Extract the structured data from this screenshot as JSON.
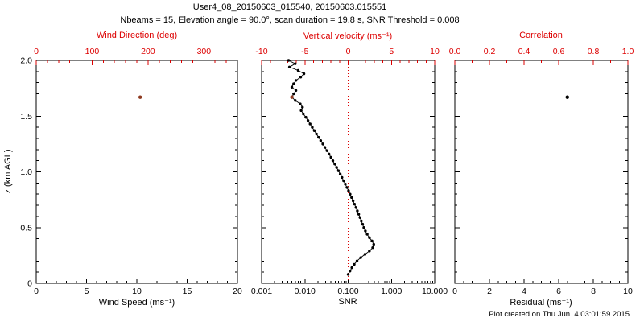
{
  "title": "User4_08_20150603_015540, 20150603.015551",
  "subtitle": "Nbeams = 15, Elevation angle = 90.0°, scan duration = 19.8 s, SNR Threshold = 0.008",
  "footer": "Plot created on Thu Jun  4 03:01:59 2015",
  "y_axis_label": "z (km AGL)",
  "colors": {
    "axis_red": "#dd0000",
    "black": "#000000",
    "point_brown": "#8e3a20",
    "background": "#ffffff"
  },
  "chart_data": [
    {
      "type": "scatter",
      "name": "wind",
      "title_top": "Wind Direction (deg)",
      "title_bottom": "Wind Speed (ms⁻¹)",
      "bottom_axis": {
        "scale": "linear",
        "range": [
          0,
          20
        ],
        "tick_values": [
          0,
          5,
          10,
          15,
          20
        ],
        "tick_labels": [
          "0",
          "5",
          "10",
          "15",
          "20"
        ],
        "minor_per_major": 4
      },
      "top_axis": {
        "scale": "linear",
        "range": [
          0,
          360
        ],
        "tick_values": [
          0,
          100,
          200,
          300
        ],
        "tick_labels": [
          "0",
          "100",
          "200",
          "300"
        ],
        "minor_per_major": 4
      },
      "y_axis": {
        "range": [
          0,
          2
        ],
        "tick_values": [
          0,
          0.5,
          1,
          1.5,
          2
        ],
        "tick_labels": [
          "0",
          "0.5",
          "1.0",
          "1.5",
          "2.0"
        ],
        "show_labels": true,
        "minor_per_major": 4
      },
      "series": [
        {
          "name": "wind-direction-point",
          "axis": "top",
          "marker_color": "#8e3a20",
          "marker_size": 2.2,
          "connect": false,
          "points": [
            [
              1.67,
              186
            ]
          ]
        }
      ]
    },
    {
      "type": "scatter",
      "name": "snr",
      "title_top": "Vertical velocity (ms⁻¹)",
      "title_bottom": "SNR",
      "bottom_axis": {
        "scale": "log",
        "range": [
          0.001,
          10
        ],
        "tick_values": [
          0.001,
          0.01,
          0.1,
          1,
          10
        ],
        "tick_labels": [
          "0.001",
          "0.010",
          "0.100",
          "1.000",
          "10.000"
        ]
      },
      "top_axis": {
        "scale": "linear",
        "range": [
          -10,
          10
        ],
        "tick_values": [
          -10,
          -5,
          0,
          5,
          10
        ],
        "tick_labels": [
          "-10",
          "-5",
          "0",
          "5",
          "10"
        ],
        "minor_per_major": 4
      },
      "y_axis": {
        "range": [
          0,
          2
        ],
        "tick_values": [
          0,
          0.5,
          1,
          1.5,
          2
        ],
        "tick_labels": [
          "0",
          "0.5",
          "1.0",
          "1.5",
          "2.0"
        ],
        "show_labels": false,
        "minor_per_major": 4
      },
      "reference_lines": [
        {
          "axis": "top",
          "value": 0,
          "style": "dotted",
          "color": "#dd0000"
        }
      ],
      "series": [
        {
          "name": "snr-profile",
          "axis": "bottom",
          "marker_color": "#000000",
          "marker_size": 1.7,
          "connect": true,
          "points": [
            [
              2.0,
              0.0042
            ],
            [
              1.97,
              0.006
            ],
            [
              1.94,
              0.0044
            ],
            [
              1.91,
              0.007
            ],
            [
              1.88,
              0.0095
            ],
            [
              1.85,
              0.008
            ],
            [
              1.82,
              0.0062
            ],
            [
              1.79,
              0.0055
            ],
            [
              1.76,
              0.005
            ],
            [
              1.73,
              0.0062
            ],
            [
              1.7,
              0.0055
            ],
            [
              1.67,
              0.005
            ],
            [
              1.64,
              0.006
            ],
            [
              1.61,
              0.0078
            ],
            [
              1.58,
              0.0088
            ],
            [
              1.55,
              0.0082
            ],
            [
              1.52,
              0.0092
            ],
            [
              1.49,
              0.0105
            ],
            [
              1.46,
              0.0118
            ],
            [
              1.43,
              0.0132
            ],
            [
              1.4,
              0.0148
            ],
            [
              1.37,
              0.0165
            ],
            [
              1.34,
              0.0185
            ],
            [
              1.31,
              0.0207
            ],
            [
              1.28,
              0.0232
            ],
            [
              1.25,
              0.026
            ],
            [
              1.22,
              0.029
            ],
            [
              1.19,
              0.0323
            ],
            [
              1.16,
              0.036
            ],
            [
              1.13,
              0.04
            ],
            [
              1.1,
              0.0443
            ],
            [
              1.07,
              0.049
            ],
            [
              1.04,
              0.0541
            ],
            [
              1.01,
              0.0596
            ],
            [
              0.98,
              0.0655
            ],
            [
              0.95,
              0.0719
            ],
            [
              0.92,
              0.0787
            ],
            [
              0.89,
              0.086
            ],
            [
              0.86,
              0.0937
            ],
            [
              0.83,
              0.102
            ],
            [
              0.8,
              0.1108
            ],
            [
              0.77,
              0.1201
            ],
            [
              0.74,
              0.13
            ],
            [
              0.71,
              0.1404
            ],
            [
              0.68,
              0.1514
            ],
            [
              0.65,
              0.163
            ],
            [
              0.62,
              0.1752
            ],
            [
              0.59,
              0.188
            ],
            [
              0.56,
              0.2015
            ],
            [
              0.53,
              0.2156
            ],
            [
              0.5,
              0.2304
            ],
            [
              0.47,
              0.25
            ],
            [
              0.44,
              0.275
            ],
            [
              0.41,
              0.31
            ],
            [
              0.38,
              0.355
            ],
            [
              0.35,
              0.39
            ],
            [
              0.32,
              0.37
            ],
            [
              0.29,
              0.31
            ],
            [
              0.26,
              0.245
            ],
            [
              0.23,
              0.195
            ],
            [
              0.2,
              0.16
            ],
            [
              0.17,
              0.138
            ],
            [
              0.14,
              0.122
            ],
            [
              0.11,
              0.11
            ],
            [
              0.08,
              0.1
            ]
          ]
        },
        {
          "name": "vertical-velocity-point",
          "axis": "top",
          "marker_color": "#8e3a20",
          "marker_size": 2.2,
          "connect": false,
          "points": [
            [
              1.67,
              -6.5
            ]
          ]
        }
      ]
    },
    {
      "type": "scatter",
      "name": "residual",
      "title_top": "Correlation",
      "title_bottom": "Residual (ms⁻¹)",
      "bottom_axis": {
        "scale": "linear",
        "range": [
          0,
          10
        ],
        "tick_values": [
          0,
          2,
          4,
          6,
          8,
          10
        ],
        "tick_labels": [
          "0",
          "2",
          "4",
          "6",
          "8",
          "10"
        ],
        "minor_per_major": 3
      },
      "top_axis": {
        "scale": "linear",
        "range": [
          0,
          1
        ],
        "tick_values": [
          0,
          0.2,
          0.4,
          0.6,
          0.8,
          1.0
        ],
        "tick_labels": [
          "0.0",
          "0.2",
          "0.4",
          "0.6",
          "0.8",
          "1.0"
        ],
        "minor_per_major": 1
      },
      "y_axis": {
        "range": [
          0,
          2
        ],
        "tick_values": [
          0,
          0.5,
          1,
          1.5,
          2
        ],
        "tick_labels": [
          "0",
          "0.5",
          "1.0",
          "1.5",
          "2.0"
        ],
        "show_labels": false,
        "minor_per_major": 4
      },
      "series": [
        {
          "name": "residual-point",
          "axis": "bottom",
          "marker_color": "#000000",
          "marker_size": 2.2,
          "connect": false,
          "points": [
            [
              1.67,
              6.5
            ]
          ]
        }
      ]
    }
  ]
}
